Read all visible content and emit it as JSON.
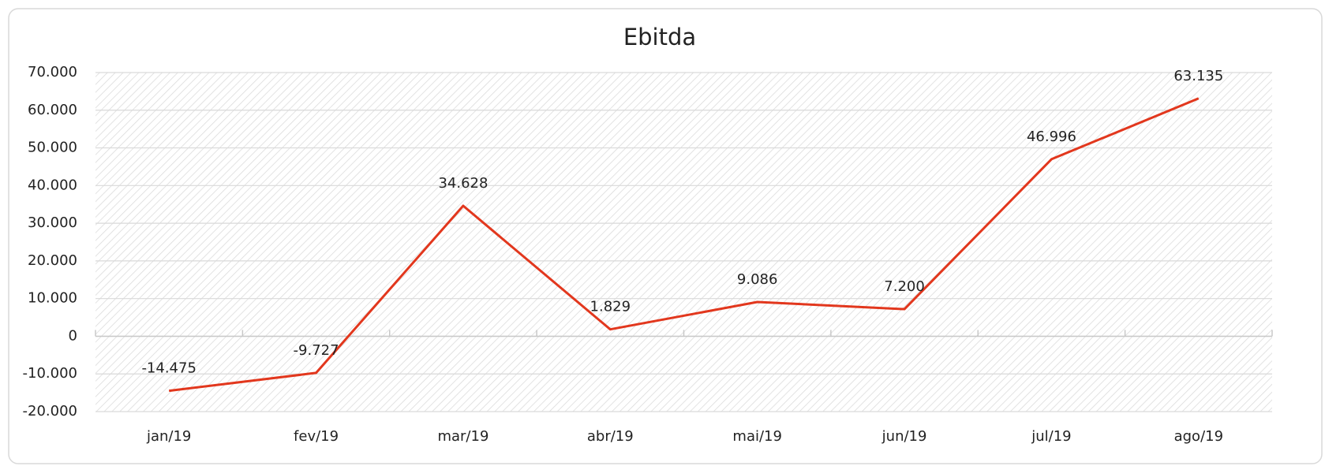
{
  "chart_data": {
    "type": "line",
    "title": "Ebitda",
    "categories": [
      "jan/19",
      "fev/19",
      "mar/19",
      "abr/19",
      "mai/19",
      "jun/19",
      "jul/19",
      "ago/19"
    ],
    "series": [
      {
        "name": "Ebitda",
        "color": "#e2371d",
        "values": [
          -14475,
          -9727,
          34628,
          1829,
          9086,
          7200,
          46996,
          63135
        ],
        "value_labels": [
          "-14.475",
          "-9.727",
          "34.628",
          "1.829",
          "9.086",
          "7.200",
          "46.996",
          "63.135"
        ]
      }
    ],
    "ylim": [
      -20000,
      70000
    ],
    "yticks": [
      {
        "value": -20000,
        "label": "-20.000"
      },
      {
        "value": -10000,
        "label": "-10.000"
      },
      0,
      {
        "value": 10000,
        "label": "10.000"
      },
      {
        "value": 20000,
        "label": "20.000"
      },
      {
        "value": 30000,
        "label": "30.000"
      },
      {
        "value": 40000,
        "label": "40.000"
      },
      {
        "value": 50000,
        "label": "50.000"
      },
      {
        "value": 60000,
        "label": "60.000"
      },
      {
        "value": 70000,
        "label": "70.000"
      }
    ],
    "grid": true
  }
}
